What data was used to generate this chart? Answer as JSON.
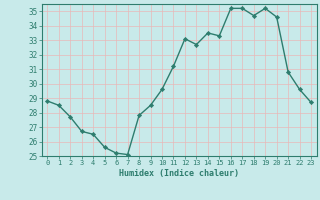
{
  "x": [
    0,
    1,
    2,
    3,
    4,
    5,
    6,
    7,
    8,
    9,
    10,
    11,
    12,
    13,
    14,
    15,
    16,
    17,
    18,
    19,
    20,
    21,
    22,
    23
  ],
  "y": [
    28.8,
    28.5,
    27.7,
    26.7,
    26.5,
    25.6,
    25.2,
    25.1,
    27.8,
    28.5,
    29.6,
    31.2,
    33.1,
    32.7,
    33.5,
    33.3,
    35.2,
    35.2,
    34.7,
    35.2,
    34.6,
    30.8,
    29.6,
    28.7
  ],
  "xlabel": "Humidex (Indice chaleur)",
  "ylim": [
    25,
    35.5
  ],
  "xlim": [
    -0.5,
    23.5
  ],
  "yticks": [
    25,
    26,
    27,
    28,
    29,
    30,
    31,
    32,
    33,
    34,
    35
  ],
  "xticks": [
    0,
    1,
    2,
    3,
    4,
    5,
    6,
    7,
    8,
    9,
    10,
    11,
    12,
    13,
    14,
    15,
    16,
    17,
    18,
    19,
    20,
    21,
    22,
    23
  ],
  "line_color": "#2e7d6e",
  "marker_color": "#2e7d6e",
  "bg_color": "#c8eaea",
  "grid_color": "#e8b8b8",
  "axis_color": "#2e7d6e",
  "tick_color": "#2e7d6e",
  "label_color": "#2e7d6e"
}
